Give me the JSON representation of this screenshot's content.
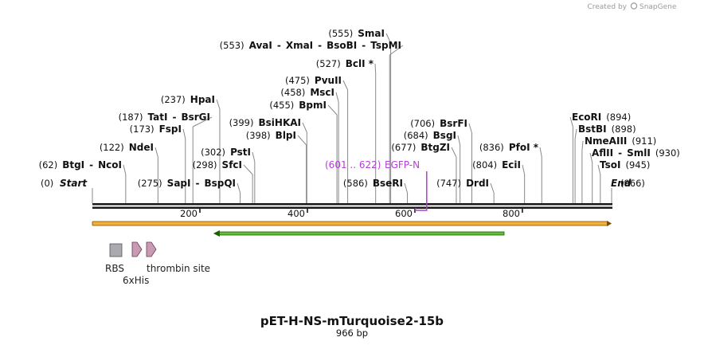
{
  "credit": {
    "prefix": "Created by",
    "brand": "SnapGene"
  },
  "title": "pET-H-NS-mTurquoise2-15b",
  "subtitle": "966 bp",
  "sequence_length": 966,
  "ends": {
    "start_label": "Start",
    "start_pos": "(0)",
    "end_label": "End",
    "end_pos": "(966)"
  },
  "ruler": [
    {
      "value": 200,
      "label": "200"
    },
    {
      "value": 400,
      "label": "400"
    },
    {
      "value": 600,
      "label": "600"
    },
    {
      "value": 800,
      "label": "800"
    }
  ],
  "left_labels": [
    {
      "pos_text": "(62)",
      "parts": [
        "BtgI",
        "NcoI"
      ],
      "pos": 62
    },
    {
      "pos_text": "(122)",
      "parts": [
        "NdeI"
      ],
      "pos": 122
    },
    {
      "pos_text": "(173)",
      "parts": [
        "FspI"
      ],
      "pos": 173
    },
    {
      "pos_text": "(187)",
      "parts": [
        "TatI",
        "BsrGI"
      ],
      "pos": 187
    },
    {
      "pos_text": "(237)",
      "parts": [
        "HpaI"
      ],
      "pos": 237
    },
    {
      "pos_text": "(275)",
      "parts": [
        "SapI",
        "BspQI"
      ],
      "pos": 275
    },
    {
      "pos_text": "(298)",
      "parts": [
        "SfcI"
      ],
      "pos": 298
    },
    {
      "pos_text": "(302)",
      "parts": [
        "PstI"
      ],
      "pos": 302
    },
    {
      "pos_text": "(398)",
      "parts": [
        "BlpI"
      ],
      "pos": 398
    },
    {
      "pos_text": "(399)",
      "parts": [
        "BsiHKAI"
      ],
      "pos": 399
    },
    {
      "pos_text": "(455)",
      "parts": [
        "BpmI"
      ],
      "pos": 455
    },
    {
      "pos_text": "(458)",
      "parts": [
        "MscI"
      ],
      "pos": 458
    },
    {
      "pos_text": "(475)",
      "parts": [
        "PvuII"
      ],
      "pos": 475
    },
    {
      "pos_text": "(527)",
      "parts": [
        "BclI *"
      ],
      "pos": 527
    },
    {
      "pos_text": "(553)",
      "parts": [
        "AvaI",
        "XmaI",
        "BsoBI",
        "TspMI"
      ],
      "pos": 553
    },
    {
      "pos_text": "(555)",
      "parts": [
        "SmaI"
      ],
      "pos": 555
    },
    {
      "pos_text": "(586)",
      "parts": [
        "BseRI"
      ],
      "pos": 586
    },
    {
      "pos_text": "(677)",
      "parts": [
        "BtgZI"
      ],
      "pos": 677
    },
    {
      "pos_text": "(684)",
      "parts": [
        "BsgI"
      ],
      "pos": 684
    },
    {
      "pos_text": "(706)",
      "parts": [
        "BsrFI"
      ],
      "pos": 706
    },
    {
      "pos_text": "(747)",
      "parts": [
        "DrdI"
      ],
      "pos": 747
    },
    {
      "pos_text": "(804)",
      "parts": [
        "EciI"
      ],
      "pos": 804
    },
    {
      "pos_text": "(836)",
      "parts": [
        "PfoI *"
      ],
      "pos": 836
    }
  ],
  "right_labels": [
    {
      "parts": [
        "EcoRI"
      ],
      "pos_text": "(894)",
      "pos": 894
    },
    {
      "parts": [
        "BstBI"
      ],
      "pos_text": "(898)",
      "pos": 898
    },
    {
      "parts": [
        "NmeAIII"
      ],
      "pos_text": "(911)",
      "pos": 911
    },
    {
      "parts": [
        "AflII",
        "SmlI"
      ],
      "pos_text": "(930)",
      "pos": 930
    },
    {
      "parts": [
        "TsoI"
      ],
      "pos_text": "(945)",
      "pos": 945
    }
  ],
  "primer": {
    "range_text": "(601 .. 622)",
    "name": "EGFP-N",
    "start": 601,
    "end": 622
  },
  "features": {
    "full_bar": {
      "start": 0,
      "end": 966,
      "color": "#f2b13c",
      "line_color": "#7a4a00"
    },
    "green_arrow": {
      "start": 225,
      "end": 766,
      "color": "#5fbf3a",
      "line_color": "#1d5e00"
    },
    "rbs": {
      "label": "RBS",
      "color": "#a9abb0"
    },
    "his": {
      "label": "6xHis",
      "color": "#c79bb3"
    },
    "thrombin": {
      "label": "thrombin site",
      "color": "#c79bb3"
    }
  },
  "colors": {
    "primer": "#b23fd6",
    "backbone": "#1a1a1a"
  }
}
